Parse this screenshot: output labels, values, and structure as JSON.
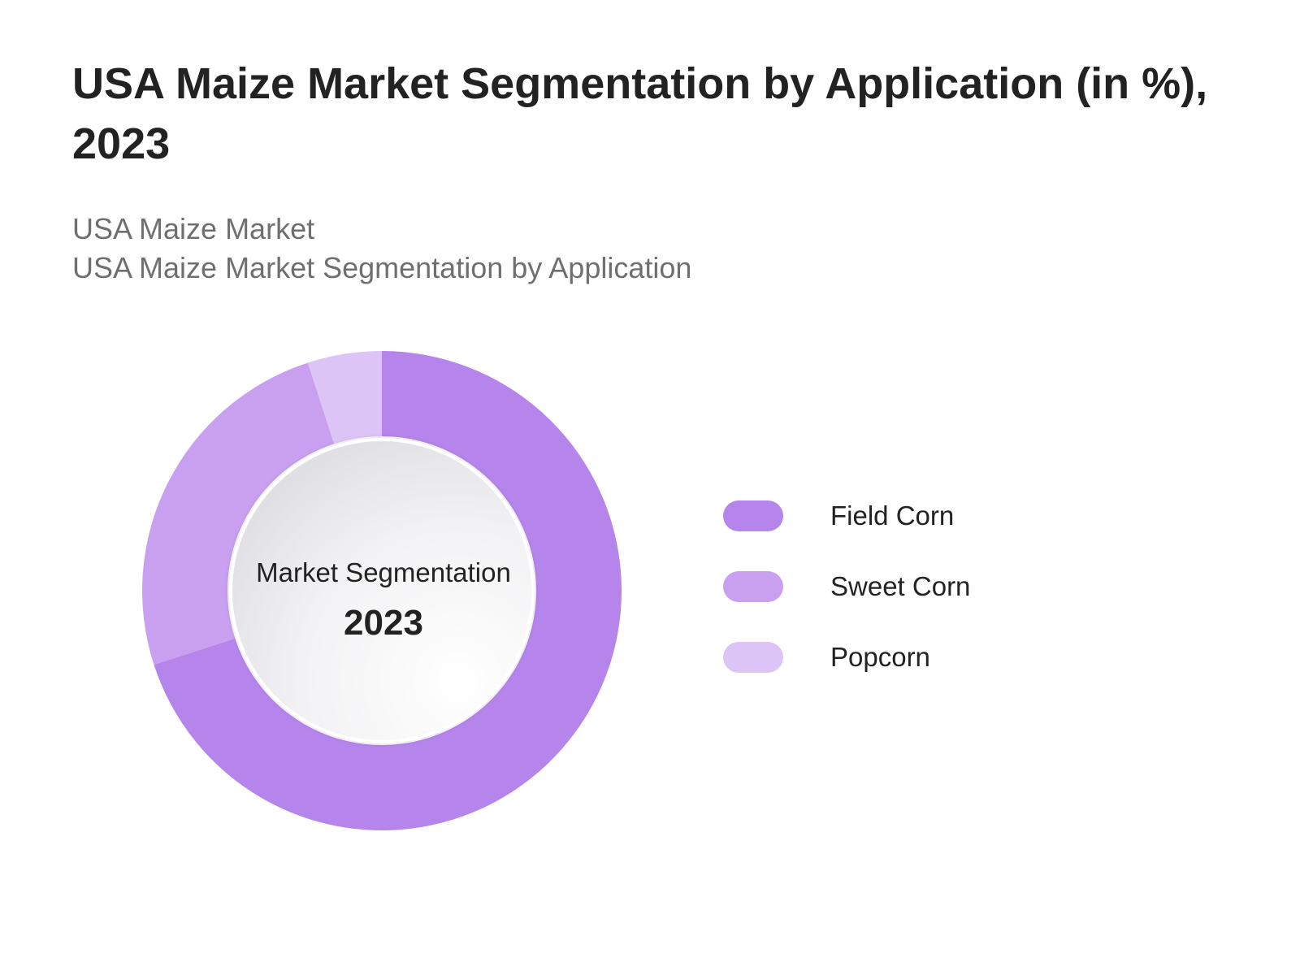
{
  "title": "USA Maize Market Segmentation by Application (in %), 2023",
  "subtitle_line1": "USA Maize Market",
  "subtitle_line2": "USA Maize Market Segmentation by Application",
  "colors": {
    "field_corn": "#b685ec",
    "sweet_corn": "#c8a0ef",
    "popcorn": "#ddc4f7"
  },
  "chart_data": {
    "type": "pie",
    "style": "donut",
    "center_label": "Market Segmentation",
    "center_year": "2023",
    "legend_position": "right",
    "categories": [
      "Field Corn",
      "Sweet Corn",
      "Popcorn"
    ],
    "values": [
      70,
      25,
      5
    ],
    "colors": [
      "#b685ec",
      "#c8a0ef",
      "#ddc4f7"
    ]
  }
}
